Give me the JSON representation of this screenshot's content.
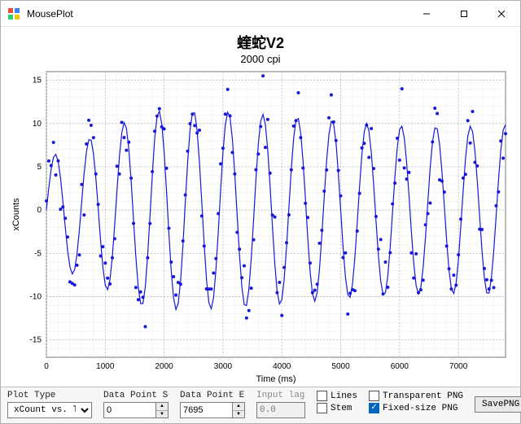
{
  "window": {
    "title": "MousePlot",
    "icon_colors": [
      "#e74c3c",
      "#3b82f6",
      "#2ecc71",
      "#f1c40f"
    ]
  },
  "chart": {
    "title": "蝰蛇V2",
    "subtitle": "2000 cpi",
    "xlabel": "Time (ms)",
    "ylabel": "xCounts",
    "xlim": [
      0,
      7800
    ],
    "ylim": [
      -17,
      16
    ],
    "xticks": [
      0,
      1000,
      2000,
      3000,
      4000,
      5000,
      6000,
      7000
    ],
    "yticks": [
      -15,
      -10,
      -5,
      0,
      5,
      10,
      15
    ],
    "minor_x_step": 200,
    "minor_y_step": 1,
    "line_color": "#1818d8",
    "marker_color": "#1818d8",
    "marker_radius": 2.0,
    "line_width": 1.2,
    "grid_major_color": "#bfbfbf",
    "grid_minor_color": "#ececec",
    "background_color": "#ffffff",
    "axis_color": "#000000",
    "tick_fontsize": 10,
    "label_fontsize": 11,
    "waveform": {
      "x_step": 40,
      "frequency_hz": 1.7,
      "amplitude_base": 6.0,
      "amplitude_ramp_end": 11.5,
      "ramp_cycles": 3,
      "noise_std": 2.2,
      "seed": 1234567
    }
  },
  "controls": {
    "plot_type": {
      "label": "Plot Type",
      "value": "xCount vs. Time"
    },
    "data_point_start": {
      "label": "Data Point Start",
      "value": "0"
    },
    "data_point_end": {
      "label": "Data Point End",
      "value": "7695"
    },
    "input_lag": {
      "label": "Input lag",
      "value": "0.0",
      "disabled": true
    },
    "lines": {
      "label": "Lines",
      "checked": false
    },
    "stem": {
      "label": "Stem",
      "checked": false
    },
    "transparent_png": {
      "label": "Transparent PNG",
      "checked": false
    },
    "fixed_size_png": {
      "label": "Fixed-size PNG",
      "checked": true
    },
    "save_btn": "SavePNG"
  }
}
